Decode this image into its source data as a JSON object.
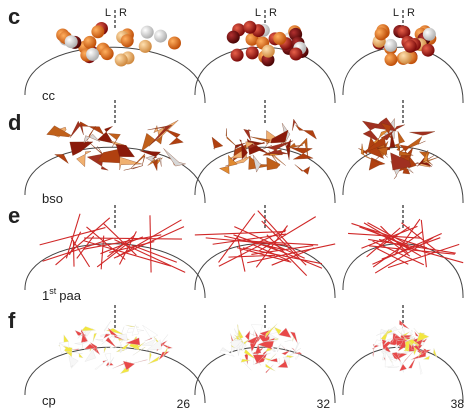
{
  "panels": [
    {
      "letter": "c",
      "label": "cc"
    },
    {
      "letter": "d",
      "label": "bso"
    },
    {
      "letter": "e",
      "label": "1",
      "label_sup": "st",
      "label_after": "paa"
    },
    {
      "letter": "f",
      "label": "cp"
    }
  ],
  "side_labels": [
    "L",
    "R"
  ],
  "columns": [
    "26",
    "32",
    "38"
  ]
}
